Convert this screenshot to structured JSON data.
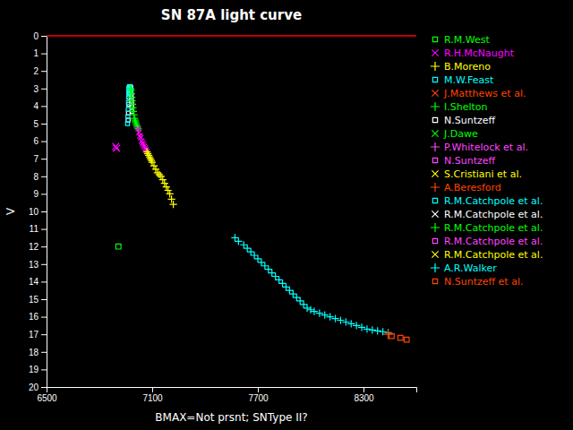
{
  "chart_data": {
    "type": "scatter",
    "title": "SN 87A  light curve",
    "xlabel": "BMAX=Not prsnt;  SNType II?",
    "ylabel": "V",
    "xlim": [
      6500,
      8600
    ],
    "ylim": [
      20,
      0
    ],
    "xticks": [
      6500,
      7100,
      7700,
      8300
    ],
    "yticks": [
      0,
      1,
      2,
      3,
      4,
      5,
      6,
      7,
      8,
      9,
      10,
      11,
      12,
      13,
      14,
      15,
      16,
      17,
      18,
      19,
      20
    ],
    "grid": false,
    "reference_line": {
      "value": 0,
      "color": "#ff0000"
    },
    "legend_entries": [
      {
        "marker": "square",
        "color": "#00ff00",
        "label": "R.M.West"
      },
      {
        "marker": "x",
        "color": "#ff00ff",
        "label": "R.H.McNaught"
      },
      {
        "marker": "plus",
        "color": "#ffff00",
        "label": "B.Moreno"
      },
      {
        "marker": "square",
        "color": "#00ffff",
        "label": "M.W.Feast"
      },
      {
        "marker": "x",
        "color": "#ff4400",
        "label": "J.Matthews et al."
      },
      {
        "marker": "plus",
        "color": "#00ff00",
        "label": "I.Shelton"
      },
      {
        "marker": "square",
        "color": "#ffffff",
        "label": "N.Suntzeff"
      },
      {
        "marker": "x",
        "color": "#00ff00",
        "label": "J.Dawe"
      },
      {
        "marker": "plus",
        "color": "#ff44ff",
        "label": "P.Whitelock et al."
      },
      {
        "marker": "square",
        "color": "#ff44ff",
        "label": "N.Suntzeff"
      },
      {
        "marker": "x",
        "color": "#ffff00",
        "label": "S.Cristiani et al."
      },
      {
        "marker": "plus",
        "color": "#ff4400",
        "label": "A.Beresford"
      },
      {
        "marker": "square",
        "color": "#00ffff",
        "label": "R.M.Catchpole et al."
      },
      {
        "marker": "x",
        "color": "#ffffff",
        "label": "R.M.Catchpole et al."
      },
      {
        "marker": "plus",
        "color": "#00ff00",
        "label": "R.M.Catchpole et al."
      },
      {
        "marker": "square",
        "color": "#ff44ff",
        "label": "R.M.Catchpole et al."
      },
      {
        "marker": "x",
        "color": "#ffff00",
        "label": "R.M.Catchpole et al."
      },
      {
        "marker": "plus",
        "color": "#00ffff",
        "label": "A.R.Walker"
      },
      {
        "marker": "square",
        "color": "#ff4400",
        "label": "N.Suntzeff et al."
      }
    ],
    "series": [
      {
        "color": "#ffffff",
        "marker": "square",
        "x": [
          6963,
          6965,
          6967,
          6968,
          6969,
          6970,
          6971,
          6972,
          6973,
          6974,
          6975,
          6976,
          6977,
          6978,
          6979,
          6980,
          6981,
          6982,
          6983,
          6984,
          6985
        ],
        "values": [
          4.8,
          4.4,
          3.9,
          3.5,
          3.2,
          3.0,
          2.95,
          2.92,
          2.91,
          2.9,
          2.91,
          2.93,
          2.96,
          3.0,
          3.1,
          3.2,
          3.4,
          3.6,
          3.8,
          4.0,
          4.3
        ]
      },
      {
        "color": "#00ffff",
        "marker": "square",
        "x": [
          6960,
          6962,
          6964,
          6965,
          6966,
          6967,
          6968,
          6969,
          6970,
          6971,
          6972,
          6973,
          6974,
          6975,
          6976,
          6977,
          6978
        ],
        "values": [
          5.0,
          4.6,
          4.2,
          3.8,
          3.5,
          3.3,
          3.1,
          3.0,
          2.95,
          2.93,
          2.92,
          2.92,
          2.93,
          2.95,
          3.0,
          3.1,
          3.2
        ]
      },
      {
        "color": "#00ff00",
        "marker": "plus",
        "x": [
          6978,
          6980,
          6982,
          6984,
          6986,
          6988,
          6990,
          6993,
          6996,
          6999,
          7002,
          7005,
          7008,
          7012,
          7016,
          7020
        ],
        "values": [
          3.0,
          3.1,
          3.3,
          3.5,
          3.7,
          3.9,
          4.1,
          4.3,
          4.5,
          4.7,
          4.8,
          4.9,
          5.0,
          5.1,
          5.2,
          5.3
        ]
      },
      {
        "color": "#ff00ff",
        "marker": "x",
        "x": [
          7020,
          7025,
          7030,
          7035,
          7040,
          7045,
          7050,
          7055,
          7060,
          7065,
          7070
        ],
        "values": [
          5.3,
          5.5,
          5.7,
          5.8,
          6.0,
          6.1,
          6.2,
          6.3,
          6.4,
          6.5,
          6.6
        ]
      },
      {
        "color": "#ffff00",
        "marker": "plus",
        "x": [
          7070,
          7075,
          7080,
          7085,
          7090,
          7095,
          7100,
          7110,
          7120,
          7130,
          7140,
          7150,
          7160,
          7170,
          7180,
          7190,
          7200,
          7210,
          7220
        ],
        "values": [
          6.6,
          6.7,
          6.8,
          6.9,
          7.0,
          7.1,
          7.2,
          7.4,
          7.6,
          7.8,
          7.9,
          8.0,
          8.2,
          8.4,
          8.6,
          8.8,
          9.0,
          9.3,
          9.6
        ]
      },
      {
        "color": "#ff00ff",
        "marker": "x",
        "x": [
          6893,
          6897
        ],
        "values": [
          6.3,
          6.4
        ]
      },
      {
        "color": "#00ff00",
        "marker": "square",
        "x": [
          6908
        ],
        "values": [
          12.0
        ]
      },
      {
        "color": "#00ffff",
        "marker": "plus",
        "x": [
          7570,
          7590,
          7620,
          7640,
          7660,
          7680,
          7700,
          7720,
          7740,
          7760,
          7780,
          7800,
          7820,
          7840,
          7860,
          7880,
          7900,
          7920,
          7940,
          7960,
          7980,
          8000,
          8020,
          8050,
          8080,
          8110,
          8140,
          8170,
          8200,
          8230,
          8260,
          8290,
          8320,
          8350,
          8380,
          8410,
          8440
        ],
        "values": [
          11.5,
          11.7,
          11.9,
          12.1,
          12.3,
          12.5,
          12.7,
          12.9,
          13.1,
          13.3,
          13.5,
          13.7,
          13.9,
          14.1,
          14.3,
          14.5,
          14.7,
          14.9,
          15.1,
          15.3,
          15.5,
          15.6,
          15.7,
          15.8,
          15.9,
          16.0,
          16.1,
          16.2,
          16.3,
          16.4,
          16.5,
          16.6,
          16.7,
          16.75,
          16.8,
          16.85,
          16.9
        ]
      },
      {
        "color": "#ff4400",
        "marker": "square",
        "x": [
          8460,
          8510,
          8545
        ],
        "values": [
          17.1,
          17.2,
          17.3
        ]
      },
      {
        "color": "#ff4400",
        "marker": "plus",
        "x": [
          8440
        ],
        "values": [
          17.0
        ]
      }
    ]
  }
}
